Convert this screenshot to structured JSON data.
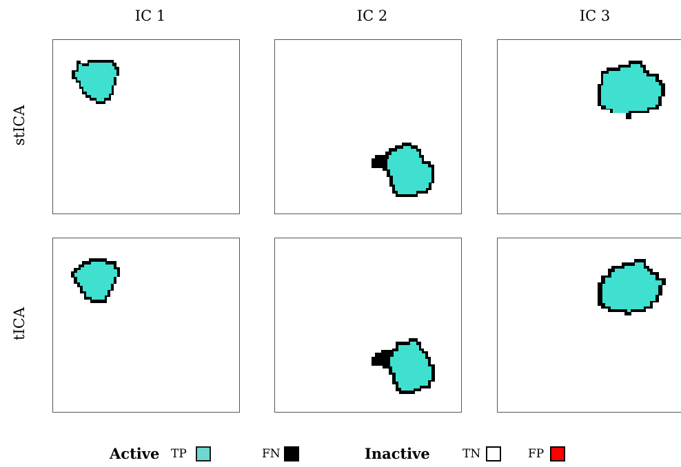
{
  "columns": [
    "IC 1",
    "IC 2",
    "IC 3"
  ],
  "rows": [
    "stICA",
    "tICA"
  ],
  "legend": {
    "active_label": "Active",
    "inactive_label": "Inactive",
    "items": [
      {
        "code": "TP",
        "fill": "#6ed8cf",
        "border": "#1a1a1a"
      },
      {
        "code": "FN",
        "fill": "#000000",
        "border": "#000000"
      },
      {
        "code": "TN",
        "fill": "#ffffff",
        "border": "#000000"
      },
      {
        "code": "FP",
        "fill": "#ff0000",
        "border": "#000000"
      }
    ]
  },
  "colors": {
    "true_positive": "#40e0d0",
    "false_negative": "#000000",
    "true_negative": "#ffffff",
    "false_positive": "#ff0000"
  }
}
